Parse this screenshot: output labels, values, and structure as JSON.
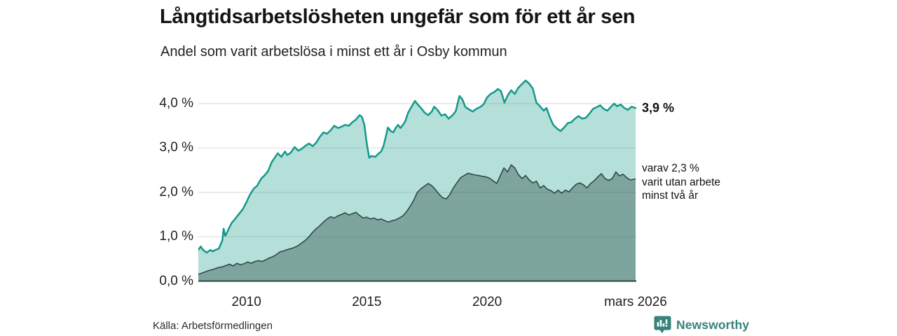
{
  "header": {
    "title": "Långtidsarbetslösheten ungefär som för ett år sen",
    "subtitle": "Andel som varit arbetslösa i minst ett år i Osby kommun"
  },
  "footer": {
    "source": "Källa: Arbetsförmedlingen",
    "brand": "Newsworthy"
  },
  "colors": {
    "line_total": "#13998a",
    "fill_total": "rgba(26,154,138,0.32)",
    "line_twoyear": "#30494a",
    "fill_twoyear": "rgba(45,74,70,0.40)",
    "gridline": "#d9d9d9",
    "zero_axis": "#2d3f3d",
    "brand_teal": "#35837a"
  },
  "chart_data": {
    "type": "area",
    "title": "Långtidsarbetslösheten ungefär som för ett år sen",
    "subtitle": "Andel som varit arbetslösa i minst ett år i Osby kommun",
    "unit": "%",
    "x_domain": [
      2008.0,
      2026.2
    ],
    "y_domain": [
      0,
      4.75
    ],
    "grid": true,
    "x_axis": {
      "ticks": [
        {
          "label": "2010",
          "year": 2010
        },
        {
          "label": "2015",
          "year": 2015
        },
        {
          "label": "2020",
          "year": 2020
        },
        {
          "label": "mars 2026",
          "year": 2026.17
        }
      ]
    },
    "y_axis": {
      "ticks": [
        {
          "label": "0,0 %",
          "value": 0
        },
        {
          "label": "1,0 %",
          "value": 1
        },
        {
          "label": "2,0 %",
          "value": 2
        },
        {
          "label": "3,0 %",
          "value": 3
        },
        {
          "label": "4,0 %",
          "value": 4
        }
      ]
    },
    "annotations": {
      "end_label_total": "3,9 %",
      "end_label_twoyear": "varav 2,3 %\nvarit utan arbete\nminst två år"
    },
    "series": [
      {
        "name": "Andel arbetslösa minst ett år",
        "end_value": 3.9,
        "points": [
          [
            2008.0,
            0.7
          ],
          [
            2008.1,
            0.78
          ],
          [
            2008.2,
            0.7
          ],
          [
            2008.35,
            0.64
          ],
          [
            2008.5,
            0.7
          ],
          [
            2008.6,
            0.67
          ],
          [
            2008.75,
            0.71
          ],
          [
            2008.85,
            0.73
          ],
          [
            2009.0,
            0.92
          ],
          [
            2009.05,
            1.18
          ],
          [
            2009.12,
            1.02
          ],
          [
            2009.2,
            1.1
          ],
          [
            2009.3,
            1.22
          ],
          [
            2009.4,
            1.32
          ],
          [
            2009.5,
            1.38
          ],
          [
            2009.6,
            1.45
          ],
          [
            2009.7,
            1.52
          ],
          [
            2009.85,
            1.62
          ],
          [
            2010.0,
            1.78
          ],
          [
            2010.15,
            1.95
          ],
          [
            2010.3,
            2.08
          ],
          [
            2010.45,
            2.15
          ],
          [
            2010.6,
            2.3
          ],
          [
            2010.75,
            2.38
          ],
          [
            2010.9,
            2.48
          ],
          [
            2011.05,
            2.68
          ],
          [
            2011.2,
            2.8
          ],
          [
            2011.3,
            2.88
          ],
          [
            2011.45,
            2.8
          ],
          [
            2011.6,
            2.92
          ],
          [
            2011.7,
            2.84
          ],
          [
            2011.85,
            2.9
          ],
          [
            2012.0,
            3.02
          ],
          [
            2012.15,
            2.94
          ],
          [
            2012.3,
            2.98
          ],
          [
            2012.45,
            3.05
          ],
          [
            2012.6,
            3.1
          ],
          [
            2012.75,
            3.04
          ],
          [
            2012.9,
            3.12
          ],
          [
            2013.05,
            3.25
          ],
          [
            2013.2,
            3.35
          ],
          [
            2013.35,
            3.32
          ],
          [
            2013.5,
            3.4
          ],
          [
            2013.65,
            3.5
          ],
          [
            2013.8,
            3.45
          ],
          [
            2013.95,
            3.48
          ],
          [
            2014.1,
            3.52
          ],
          [
            2014.25,
            3.5
          ],
          [
            2014.4,
            3.58
          ],
          [
            2014.55,
            3.64
          ],
          [
            2014.7,
            3.74
          ],
          [
            2014.8,
            3.7
          ],
          [
            2014.9,
            3.52
          ],
          [
            2015.0,
            3.1
          ],
          [
            2015.1,
            2.78
          ],
          [
            2015.2,
            2.82
          ],
          [
            2015.35,
            2.8
          ],
          [
            2015.5,
            2.88
          ],
          [
            2015.6,
            2.92
          ],
          [
            2015.7,
            3.05
          ],
          [
            2015.8,
            3.28
          ],
          [
            2015.88,
            3.46
          ],
          [
            2016.0,
            3.38
          ],
          [
            2016.1,
            3.35
          ],
          [
            2016.2,
            3.45
          ],
          [
            2016.3,
            3.52
          ],
          [
            2016.4,
            3.45
          ],
          [
            2016.5,
            3.52
          ],
          [
            2016.6,
            3.6
          ],
          [
            2016.72,
            3.8
          ],
          [
            2016.85,
            3.92
          ],
          [
            2017.0,
            4.06
          ],
          [
            2017.12,
            3.98
          ],
          [
            2017.25,
            3.9
          ],
          [
            2017.4,
            3.8
          ],
          [
            2017.55,
            3.74
          ],
          [
            2017.7,
            3.82
          ],
          [
            2017.8,
            3.93
          ],
          [
            2017.95,
            3.85
          ],
          [
            2018.1,
            3.73
          ],
          [
            2018.25,
            3.76
          ],
          [
            2018.4,
            3.66
          ],
          [
            2018.55,
            3.73
          ],
          [
            2018.7,
            3.83
          ],
          [
            2018.85,
            4.17
          ],
          [
            2018.97,
            4.1
          ],
          [
            2019.1,
            3.92
          ],
          [
            2019.25,
            3.87
          ],
          [
            2019.4,
            3.82
          ],
          [
            2019.55,
            3.88
          ],
          [
            2019.7,
            3.92
          ],
          [
            2019.85,
            3.98
          ],
          [
            2020.0,
            4.14
          ],
          [
            2020.15,
            4.22
          ],
          [
            2020.3,
            4.26
          ],
          [
            2020.45,
            4.33
          ],
          [
            2020.58,
            4.28
          ],
          [
            2020.72,
            4.02
          ],
          [
            2020.85,
            4.18
          ],
          [
            2021.0,
            4.3
          ],
          [
            2021.15,
            4.22
          ],
          [
            2021.3,
            4.36
          ],
          [
            2021.45,
            4.44
          ],
          [
            2021.6,
            4.52
          ],
          [
            2021.75,
            4.45
          ],
          [
            2021.9,
            4.34
          ],
          [
            2022.05,
            4.02
          ],
          [
            2022.2,
            3.94
          ],
          [
            2022.35,
            3.84
          ],
          [
            2022.47,
            3.9
          ],
          [
            2022.6,
            3.7
          ],
          [
            2022.75,
            3.52
          ],
          [
            2022.9,
            3.44
          ],
          [
            2023.05,
            3.38
          ],
          [
            2023.2,
            3.46
          ],
          [
            2023.35,
            3.56
          ],
          [
            2023.5,
            3.58
          ],
          [
            2023.65,
            3.66
          ],
          [
            2023.8,
            3.72
          ],
          [
            2023.95,
            3.66
          ],
          [
            2024.1,
            3.68
          ],
          [
            2024.25,
            3.77
          ],
          [
            2024.4,
            3.88
          ],
          [
            2024.55,
            3.92
          ],
          [
            2024.7,
            3.96
          ],
          [
            2024.85,
            3.88
          ],
          [
            2025.0,
            3.84
          ],
          [
            2025.15,
            3.93
          ],
          [
            2025.28,
            4.0
          ],
          [
            2025.4,
            3.94
          ],
          [
            2025.55,
            3.98
          ],
          [
            2025.7,
            3.9
          ],
          [
            2025.85,
            3.86
          ],
          [
            2026.0,
            3.93
          ],
          [
            2026.17,
            3.9
          ]
        ]
      },
      {
        "name": "varav utan arbete minst två år",
        "end_value": 2.3,
        "points": [
          [
            2008.0,
            0.15
          ],
          [
            2008.2,
            0.19
          ],
          [
            2008.4,
            0.23
          ],
          [
            2008.6,
            0.26
          ],
          [
            2008.8,
            0.3
          ],
          [
            2009.0,
            0.32
          ],
          [
            2009.15,
            0.35
          ],
          [
            2009.3,
            0.38
          ],
          [
            2009.45,
            0.34
          ],
          [
            2009.6,
            0.4
          ],
          [
            2009.75,
            0.37
          ],
          [
            2009.9,
            0.39
          ],
          [
            2010.05,
            0.43
          ],
          [
            2010.2,
            0.4
          ],
          [
            2010.35,
            0.44
          ],
          [
            2010.5,
            0.46
          ],
          [
            2010.65,
            0.44
          ],
          [
            2010.8,
            0.48
          ],
          [
            2010.95,
            0.52
          ],
          [
            2011.1,
            0.55
          ],
          [
            2011.25,
            0.6
          ],
          [
            2011.4,
            0.66
          ],
          [
            2011.55,
            0.68
          ],
          [
            2011.7,
            0.71
          ],
          [
            2011.85,
            0.73
          ],
          [
            2012.0,
            0.76
          ],
          [
            2012.15,
            0.8
          ],
          [
            2012.3,
            0.86
          ],
          [
            2012.45,
            0.92
          ],
          [
            2012.6,
            1.0
          ],
          [
            2012.75,
            1.1
          ],
          [
            2012.9,
            1.18
          ],
          [
            2013.05,
            1.25
          ],
          [
            2013.2,
            1.33
          ],
          [
            2013.35,
            1.4
          ],
          [
            2013.5,
            1.45
          ],
          [
            2013.65,
            1.42
          ],
          [
            2013.8,
            1.47
          ],
          [
            2013.95,
            1.5
          ],
          [
            2014.1,
            1.54
          ],
          [
            2014.25,
            1.49
          ],
          [
            2014.4,
            1.52
          ],
          [
            2014.55,
            1.55
          ],
          [
            2014.7,
            1.48
          ],
          [
            2014.85,
            1.42
          ],
          [
            2015.0,
            1.44
          ],
          [
            2015.15,
            1.4
          ],
          [
            2015.3,
            1.42
          ],
          [
            2015.45,
            1.38
          ],
          [
            2015.6,
            1.4
          ],
          [
            2015.75,
            1.36
          ],
          [
            2015.9,
            1.33
          ],
          [
            2016.05,
            1.36
          ],
          [
            2016.2,
            1.38
          ],
          [
            2016.35,
            1.42
          ],
          [
            2016.5,
            1.47
          ],
          [
            2016.65,
            1.56
          ],
          [
            2016.8,
            1.68
          ],
          [
            2016.95,
            1.82
          ],
          [
            2017.1,
            2.0
          ],
          [
            2017.25,
            2.08
          ],
          [
            2017.4,
            2.14
          ],
          [
            2017.55,
            2.2
          ],
          [
            2017.7,
            2.15
          ],
          [
            2017.85,
            2.06
          ],
          [
            2018.0,
            1.96
          ],
          [
            2018.15,
            1.88
          ],
          [
            2018.3,
            1.85
          ],
          [
            2018.45,
            1.95
          ],
          [
            2018.6,
            2.1
          ],
          [
            2018.75,
            2.22
          ],
          [
            2018.9,
            2.33
          ],
          [
            2019.05,
            2.38
          ],
          [
            2019.2,
            2.43
          ],
          [
            2019.35,
            2.41
          ],
          [
            2019.5,
            2.39
          ],
          [
            2019.65,
            2.38
          ],
          [
            2019.8,
            2.36
          ],
          [
            2019.95,
            2.35
          ],
          [
            2020.1,
            2.32
          ],
          [
            2020.25,
            2.26
          ],
          [
            2020.4,
            2.2
          ],
          [
            2020.55,
            2.38
          ],
          [
            2020.7,
            2.55
          ],
          [
            2020.85,
            2.46
          ],
          [
            2021.0,
            2.62
          ],
          [
            2021.15,
            2.55
          ],
          [
            2021.3,
            2.4
          ],
          [
            2021.45,
            2.31
          ],
          [
            2021.6,
            2.38
          ],
          [
            2021.75,
            2.28
          ],
          [
            2021.9,
            2.21
          ],
          [
            2022.05,
            2.25
          ],
          [
            2022.2,
            2.1
          ],
          [
            2022.35,
            2.15
          ],
          [
            2022.5,
            2.07
          ],
          [
            2022.65,
            2.04
          ],
          [
            2022.8,
            1.98
          ],
          [
            2022.95,
            2.05
          ],
          [
            2023.1,
            1.98
          ],
          [
            2023.25,
            2.05
          ],
          [
            2023.4,
            2.01
          ],
          [
            2023.55,
            2.1
          ],
          [
            2023.7,
            2.18
          ],
          [
            2023.85,
            2.21
          ],
          [
            2024.0,
            2.17
          ],
          [
            2024.15,
            2.1
          ],
          [
            2024.3,
            2.2
          ],
          [
            2024.45,
            2.26
          ],
          [
            2024.6,
            2.35
          ],
          [
            2024.75,
            2.42
          ],
          [
            2024.9,
            2.31
          ],
          [
            2025.05,
            2.27
          ],
          [
            2025.2,
            2.31
          ],
          [
            2025.35,
            2.46
          ],
          [
            2025.5,
            2.37
          ],
          [
            2025.65,
            2.41
          ],
          [
            2025.8,
            2.33
          ],
          [
            2025.95,
            2.28
          ],
          [
            2026.17,
            2.3
          ]
        ]
      }
    ]
  }
}
